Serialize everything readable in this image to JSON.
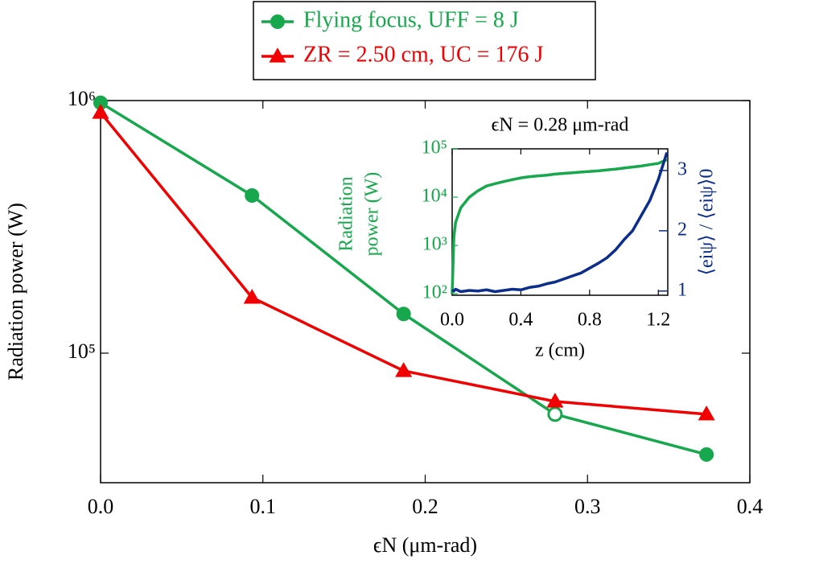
{
  "chart_data": [
    {
      "type": "line",
      "xlabel": "ϵN (μm-rad)",
      "ylabel": "Radiation power (W)",
      "x": [
        0,
        0.0933,
        0.1867,
        0.28,
        0.3733
      ],
      "series": [
        {
          "name": "Flying focus, UFF = 8 J",
          "color": "#17a84d",
          "marker": "circle",
          "open_markers": [
            3
          ],
          "values": [
            980000,
            421000,
            143000,
            57300,
            39700
          ]
        },
        {
          "name": "ZR = 2.50 cm, UC = 176 J",
          "color": "#f00000",
          "marker": "triangle",
          "values": [
            896000,
            166000,
            85100,
            64400,
            57300
          ]
        }
      ],
      "xlim": [
        0,
        0.4
      ],
      "xticks": [
        {
          "value": 0,
          "label": "0.0"
        },
        0.1,
        0.2,
        0.3,
        0.4
      ],
      "ylim": [
        30700,
        1000000
      ],
      "ylog": true,
      "yticks": [
        {
          "value": 100000,
          "label": "10⁵"
        },
        {
          "value": 1000000,
          "label": "10⁶"
        }
      ],
      "legend": "top"
    },
    {
      "type": "line",
      "title": "ϵN = 0.28 μm-rad",
      "xlabel": "z (cm)",
      "ylabel_lines": [
        "Radiation",
        "power (W)"
      ],
      "y2label": "⟨eiψ⟩ / ⟨eiψ⟩0",
      "x": [
        0,
        0.01,
        0.02,
        0.05,
        0.1,
        0.15,
        0.2,
        0.25,
        0.3,
        0.35,
        0.4,
        0.45,
        0.5,
        0.55,
        0.6,
        0.65,
        0.7,
        0.75,
        0.8,
        0.85,
        0.9,
        0.95,
        1.0,
        1.05,
        1.1,
        1.15,
        1.2,
        1.25
      ],
      "series": [
        {
          "color": "#17a84d",
          "values": [
            100,
            1500,
            3000,
            6000,
            10000,
            13500,
            17000,
            19000,
            21000,
            23000,
            25000,
            26500,
            27500,
            28500,
            30000,
            31000,
            32000,
            33000,
            34000,
            35000,
            36500,
            38000,
            40000,
            42000,
            44000,
            47000,
            50000,
            60000
          ]
        },
        {
          "color": "#0b2d8c",
          "axis": "y2",
          "values": [
            1.02,
            1.0,
            1.03,
            0.99,
            1.01,
            1.0,
            1.02,
            0.99,
            1.01,
            1.03,
            1.02,
            1.06,
            1.08,
            1.12,
            1.15,
            1.2,
            1.25,
            1.3,
            1.38,
            1.46,
            1.55,
            1.68,
            1.85,
            2.0,
            2.25,
            2.5,
            2.85,
            3.3
          ]
        }
      ],
      "xlim": [
        0,
        1.255
      ],
      "xticks": [
        {
          "value": 0,
          "label": "0.0"
        },
        0.4,
        0.8,
        1.2
      ],
      "ylim": [
        93,
        100000
      ],
      "ylog": true,
      "yticks": [
        {
          "value": 100,
          "label": "10²"
        },
        {
          "value": 1000,
          "label": "10³"
        },
        {
          "value": 10000,
          "label": "10⁴"
        },
        {
          "value": 100000,
          "label": "10⁵"
        }
      ],
      "y2lim": [
        0.93,
        3.36
      ],
      "y2ticks": [
        1,
        2,
        3
      ]
    }
  ]
}
